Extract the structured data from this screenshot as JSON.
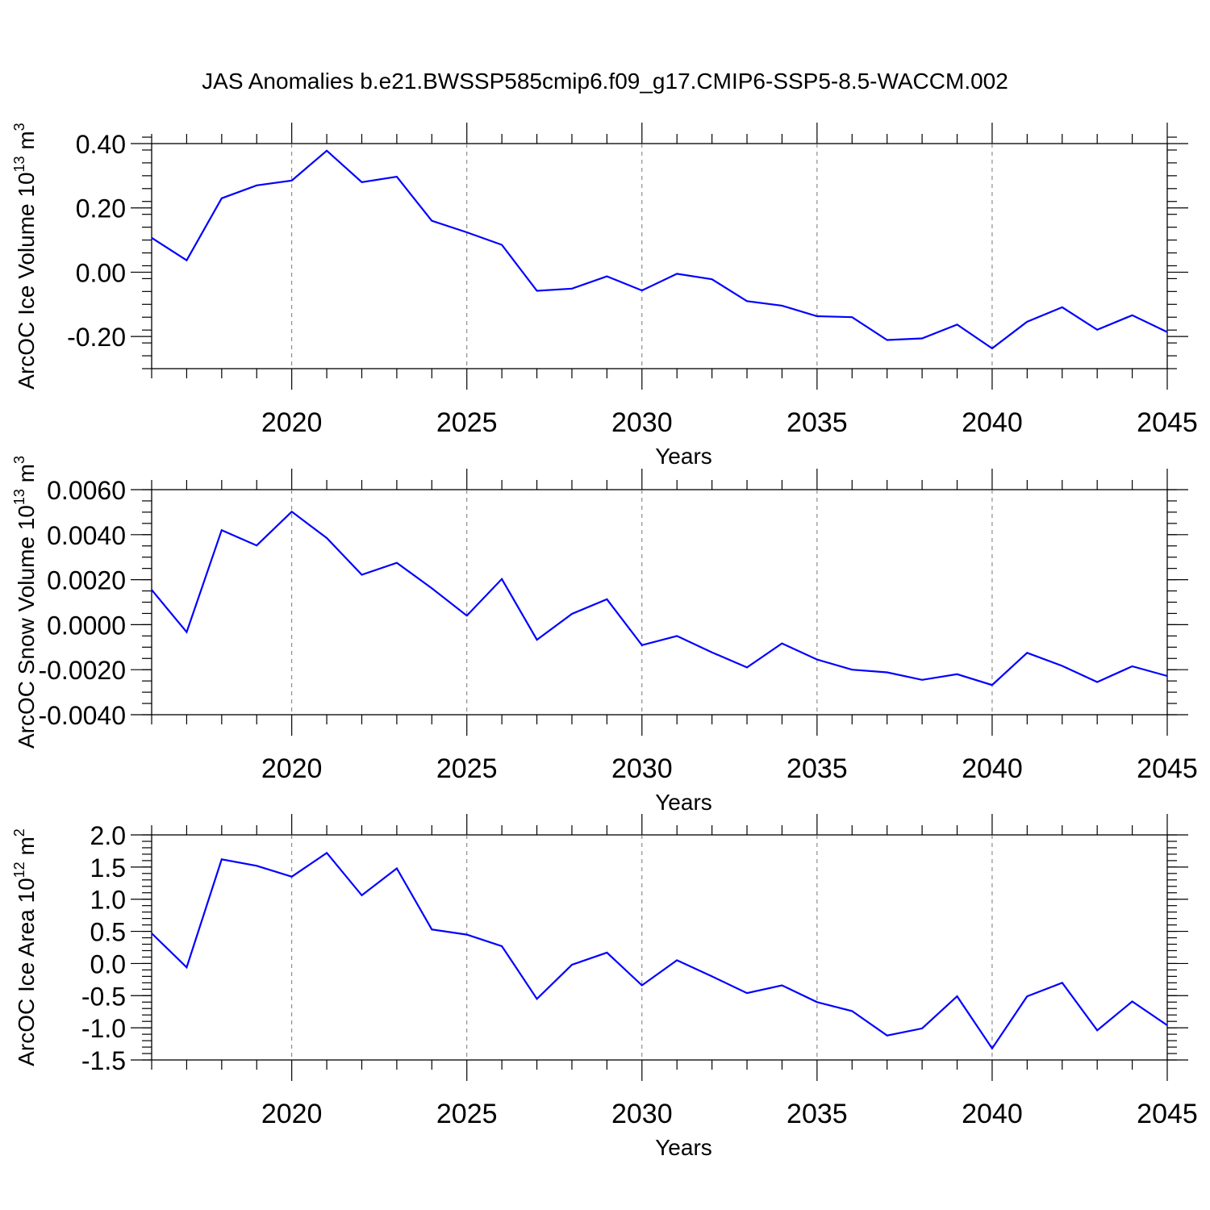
{
  "title": "JAS Anomalies b.e21.BWSSP585cmip6.f09_g17.CMIP6-SSP5-8.5-WACCM.002",
  "colors": {
    "line": "#0000ff",
    "frame": "#000000",
    "grid": "#777777"
  },
  "chart_data": [
    {
      "type": "line",
      "name": "ice-volume",
      "ylabel_main": "ArcOC Ice Volume 10",
      "ylabel_sup": "13",
      "ylabel_unit": " m",
      "ylabel_unit_sup": "3",
      "xlabel": "Years",
      "xlim": [
        2016,
        2045
      ],
      "ylim": [
        -0.3,
        0.4
      ],
      "xticks": [
        2020,
        2025,
        2030,
        2035,
        2040,
        2045
      ],
      "xtick_labels": [
        "2020",
        "2025",
        "2030",
        "2035",
        "2040",
        "2045"
      ],
      "yticks": [
        -0.2,
        0.0,
        0.2,
        0.4
      ],
      "ytick_labels": [
        "-0.20",
        "0.00",
        "0.20",
        "0.40"
      ],
      "yminor": 0.04,
      "x": [
        2016,
        2017,
        2018,
        2019,
        2020,
        2021,
        2022,
        2023,
        2024,
        2025,
        2026,
        2027,
        2028,
        2029,
        2030,
        2031,
        2032,
        2033,
        2034,
        2035,
        2036,
        2037,
        2038,
        2039,
        2040,
        2041,
        2042,
        2043,
        2044,
        2045
      ],
      "series": [
        {
          "name": "anomaly",
          "values": [
            0.107,
            0.037,
            0.23,
            0.27,
            0.285,
            0.378,
            0.28,
            0.297,
            0.16,
            0.124,
            0.085,
            -0.058,
            -0.051,
            -0.013,
            -0.057,
            -0.005,
            -0.022,
            -0.09,
            -0.104,
            -0.137,
            -0.14,
            -0.211,
            -0.206,
            -0.163,
            -0.237,
            -0.154,
            -0.109,
            -0.179,
            -0.134,
            -0.186
          ]
        }
      ]
    },
    {
      "type": "line",
      "name": "snow-volume",
      "ylabel_main": "ArcOC Snow Volume 10",
      "ylabel_sup": "13",
      "ylabel_unit": " m",
      "ylabel_unit_sup": "3",
      "xlabel": "Years",
      "xlim": [
        2016,
        2045
      ],
      "ylim": [
        -0.004,
        0.006
      ],
      "xticks": [
        2020,
        2025,
        2030,
        2035,
        2040,
        2045
      ],
      "xtick_labels": [
        "2020",
        "2025",
        "2030",
        "2035",
        "2040",
        "2045"
      ],
      "yticks": [
        -0.004,
        -0.002,
        0.0,
        0.002,
        0.004,
        0.006
      ],
      "ytick_labels": [
        "-0.0040",
        "-0.0020",
        "0.0000",
        "0.0020",
        "0.0040",
        "0.0060"
      ],
      "yminor": 0.0005,
      "x": [
        2016,
        2017,
        2018,
        2019,
        2020,
        2021,
        2022,
        2023,
        2024,
        2025,
        2026,
        2027,
        2028,
        2029,
        2030,
        2031,
        2032,
        2033,
        2034,
        2035,
        2036,
        2037,
        2038,
        2039,
        2040,
        2041,
        2042,
        2043,
        2044,
        2045
      ],
      "series": [
        {
          "name": "anomaly",
          "values": [
            0.00155,
            -0.00033,
            0.0042,
            0.00352,
            0.00502,
            0.00385,
            0.00222,
            0.00275,
            0.00162,
            0.0004,
            0.00203,
            -0.00067,
            0.00048,
            0.00113,
            -0.00091,
            -0.0005,
            -0.00123,
            -0.0019,
            -0.00083,
            -0.00155,
            -0.002,
            -0.00212,
            -0.00245,
            -0.0022,
            -0.00268,
            -0.00125,
            -0.00183,
            -0.00255,
            -0.00185,
            -0.00228
          ]
        }
      ]
    },
    {
      "type": "line",
      "name": "ice-area",
      "ylabel_main": "ArcOC Ice Area 10",
      "ylabel_sup": "12",
      "ylabel_unit": " m",
      "ylabel_unit_sup": "2",
      "xlabel": "Years",
      "xlim": [
        2016,
        2045
      ],
      "ylim": [
        -1.5,
        2.0
      ],
      "xticks": [
        2020,
        2025,
        2030,
        2035,
        2040,
        2045
      ],
      "xtick_labels": [
        "2020",
        "2025",
        "2030",
        "2035",
        "2040",
        "2045"
      ],
      "yticks": [
        -1.5,
        -1.0,
        -0.5,
        0.0,
        0.5,
        1.0,
        1.5,
        2.0
      ],
      "ytick_labels": [
        "-1.5",
        "-1.0",
        "-0.5",
        "0.0",
        "0.5",
        "1.0",
        "1.5",
        "2.0"
      ],
      "yminor": 0.1,
      "x": [
        2016,
        2017,
        2018,
        2019,
        2020,
        2021,
        2022,
        2023,
        2024,
        2025,
        2026,
        2027,
        2028,
        2029,
        2030,
        2031,
        2032,
        2033,
        2034,
        2035,
        2036,
        2037,
        2038,
        2039,
        2040,
        2041,
        2042,
        2043,
        2044,
        2045
      ],
      "series": [
        {
          "name": "anomaly",
          "values": [
            0.47,
            -0.06,
            1.62,
            1.52,
            1.35,
            1.72,
            1.06,
            1.48,
            0.53,
            0.45,
            0.27,
            -0.55,
            -0.02,
            0.17,
            -0.34,
            0.05,
            -0.2,
            -0.46,
            -0.34,
            -0.6,
            -0.74,
            -1.12,
            -1.01,
            -0.51,
            -1.32,
            -0.51,
            -0.3,
            -1.04,
            -0.59,
            -0.96
          ]
        }
      ]
    }
  ]
}
